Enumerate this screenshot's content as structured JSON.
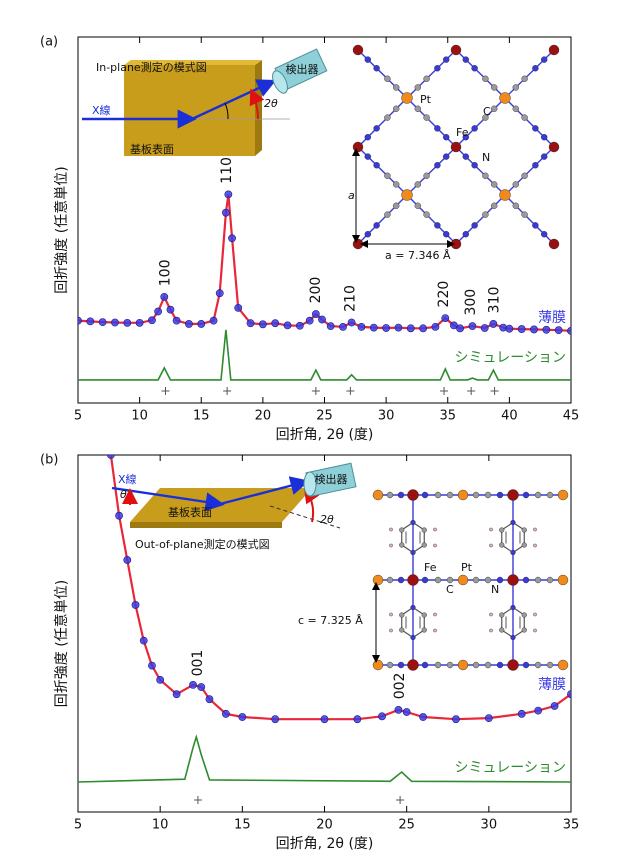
{
  "chart_data": [
    {
      "type": "line",
      "panel": "(a)",
      "x_label": "回折角, 2θ (度)",
      "y_label": "回折強度 (任意単位)",
      "xlim": [
        5,
        45
      ],
      "xticks": [
        5,
        10,
        15,
        20,
        25,
        30,
        35,
        40,
        45
      ],
      "ylim": [
        0,
        100
      ],
      "series": [
        {
          "name": "薄膜",
          "color": "#3a3ae6",
          "line_color": "#e8283a",
          "x": [
            5,
            6,
            7,
            8,
            9,
            10,
            11,
            11.5,
            12,
            12.5,
            13,
            14,
            15,
            16,
            16.5,
            17,
            17.2,
            17.5,
            18,
            19,
            20,
            21,
            22,
            23,
            23.8,
            24.3,
            24.8,
            25.5,
            26.5,
            27.2,
            28,
            29,
            30,
            31,
            32,
            33,
            34,
            34.8,
            35.5,
            36,
            37,
            38,
            38.7,
            39.5,
            40,
            41,
            42,
            43,
            44,
            45
          ],
          "values": [
            22.5,
            22.3,
            22.1,
            22,
            21.9,
            21.9,
            22.6,
            25,
            29,
            25.5,
            22.5,
            21.6,
            21.6,
            22.5,
            30,
            52,
            57,
            45,
            26,
            21.8,
            21.5,
            21.8,
            21.2,
            21.1,
            22.5,
            24.3,
            22.8,
            21,
            20.8,
            22,
            20.8,
            20.6,
            20.5,
            20.6,
            20.4,
            20.4,
            20.8,
            23.2,
            21.2,
            20.4,
            21,
            20.5,
            21.6,
            20.6,
            20.3,
            20.2,
            20.1,
            20,
            19.9,
            19.7
          ]
        },
        {
          "name": "シミュレーション",
          "color": "#2e8b2e",
          "x": [
            5,
            11.5,
            12,
            12.5,
            16.6,
            17,
            17.4,
            23.9,
            24.3,
            24.7,
            26.8,
            27.2,
            27.6,
            34.4,
            34.8,
            35.2,
            36.6,
            37,
            37.4,
            38.3,
            38.7,
            39.1,
            45
          ],
          "values": [
            6.3,
            6.3,
            9.6,
            6.3,
            6.3,
            20,
            6.3,
            6.3,
            9,
            6.3,
            6.3,
            7.7,
            6.3,
            6.3,
            9.3,
            6.3,
            6.3,
            6.8,
            6.3,
            6.3,
            9,
            6.3,
            6.3
          ]
        }
      ],
      "peaks": [
        {
          "label": "100",
          "x": 12.1
        },
        {
          "label": "110",
          "x": 17.1
        },
        {
          "label": "200",
          "x": 24.3
        },
        {
          "label": "210",
          "x": 27.1
        },
        {
          "label": "220",
          "x": 34.7
        },
        {
          "label": "300",
          "x": 36.9
        },
        {
          "label": "310",
          "x": 38.8
        }
      ],
      "schematic": {
        "title": "In-plane測定の模式図",
        "xray": "X線",
        "angle": "2θ",
        "detector": "検出器",
        "surface": "基板表面"
      },
      "structure": {
        "labels": [
          "Pt",
          "C",
          "Fe",
          "N"
        ],
        "lattice_axis": "a",
        "lattice_constant": "a = 7.346 Å"
      }
    },
    {
      "type": "line",
      "panel": "(b)",
      "x_label": "回折角, 2θ (度)",
      "y_label": "回折強度 (任意単位)",
      "xlim": [
        5,
        35
      ],
      "xticks": [
        5,
        10,
        15,
        20,
        25,
        30,
        35
      ],
      "ylim": [
        0,
        100
      ],
      "series": [
        {
          "name": "薄膜",
          "color": "#3a3ae6",
          "line_color": "#e8283a",
          "x": [
            7,
            7.5,
            8,
            8.5,
            9,
            9.5,
            10,
            11,
            12,
            12.5,
            13,
            14,
            15,
            17,
            20,
            22,
            23.5,
            24.5,
            25,
            26,
            28,
            30,
            32,
            33,
            34,
            35
          ],
          "values": [
            100,
            83,
            70.6,
            58,
            48,
            41,
            37,
            33,
            35.6,
            35,
            31.6,
            27.5,
            26.6,
            26,
            26,
            26,
            26.8,
            28.6,
            28,
            26.6,
            26,
            26.3,
            27.5,
            28.4,
            29.7,
            33
          ]
        },
        {
          "name": "シミュレーション",
          "color": "#2e8b2e",
          "x": [
            5,
            11.5,
            12,
            12.2,
            12.5,
            13,
            24,
            24.7,
            25.3,
            35
          ],
          "values": [
            8.4,
            9.2,
            18,
            21,
            16,
            9,
            8.6,
            11.2,
            8.6,
            8.4
          ]
        }
      ],
      "peaks": [
        {
          "label": "001",
          "x": 12.3
        },
        {
          "label": "002",
          "x": 24.6
        }
      ],
      "schematic": {
        "title": "Out-of-plane測定の模式図",
        "xray": "X線",
        "incidence": "θ",
        "angle": "2θ",
        "detector": "検出器",
        "surface": "基板表面"
      },
      "structure": {
        "labels": [
          "Fe",
          "Pt",
          "C",
          "N"
        ],
        "lattice_constant": "c = 7.325 Å"
      }
    }
  ]
}
